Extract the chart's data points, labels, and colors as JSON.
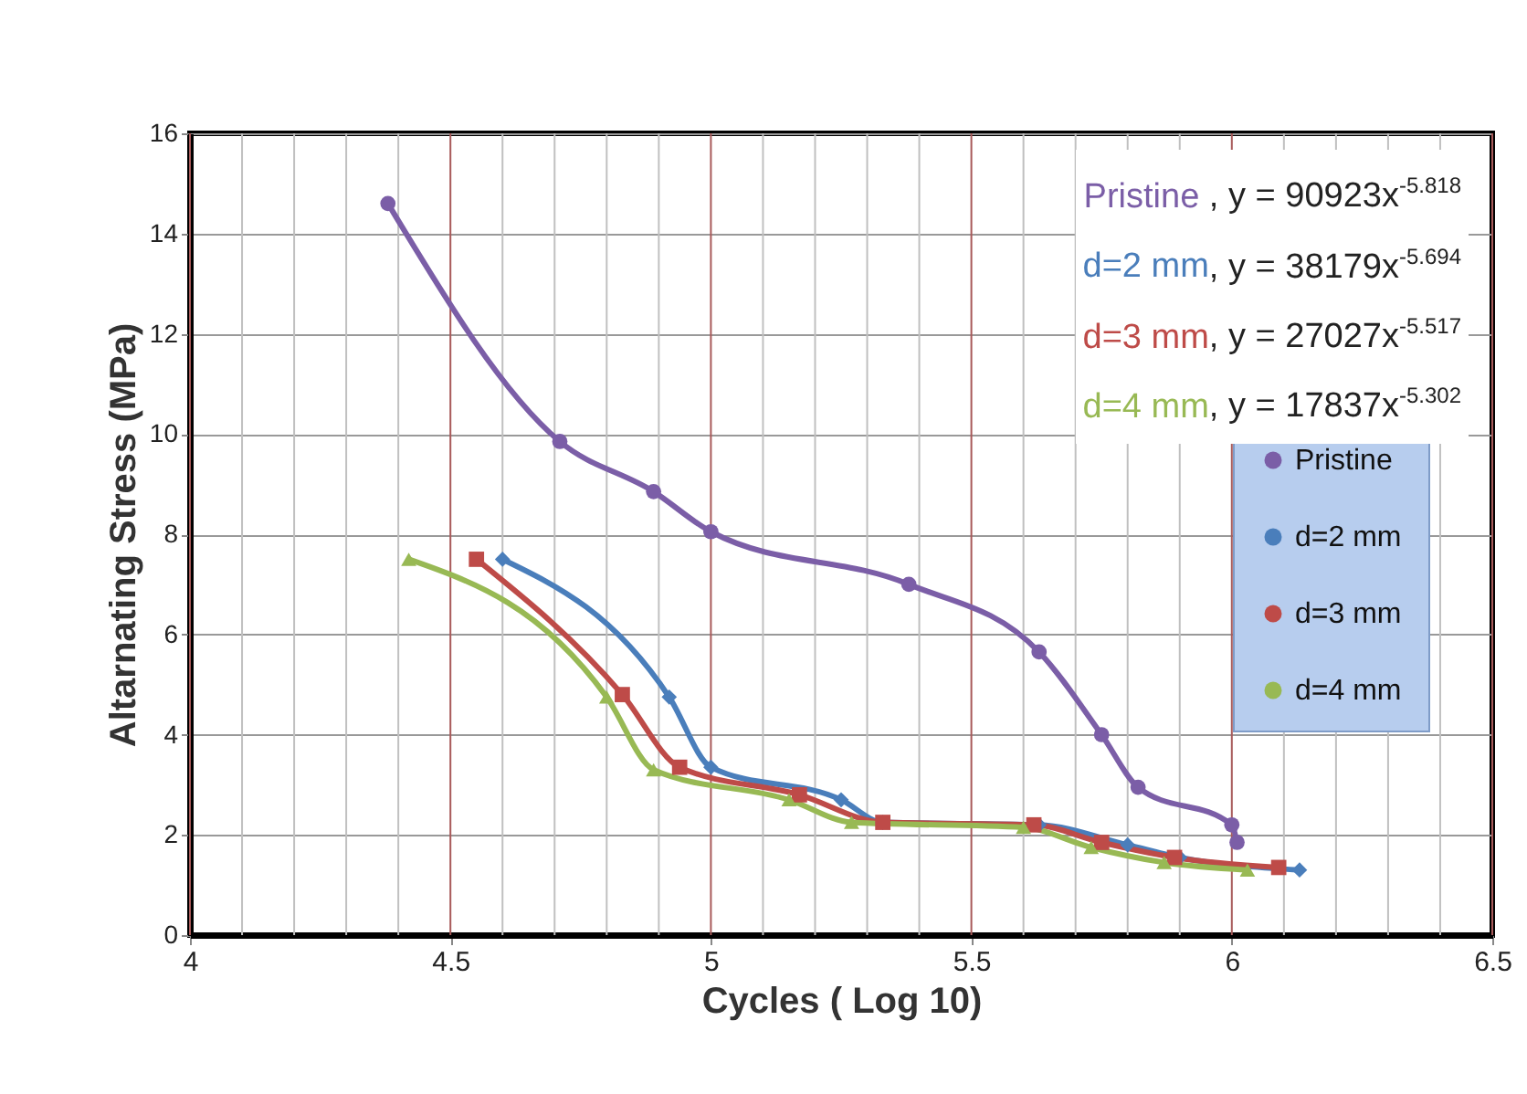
{
  "chart_data": {
    "type": "line",
    "xlabel": "Cycles ( Log 10)",
    "ylabel": "Altarnating Stress (MPa)",
    "xlim": [
      4,
      6.5
    ],
    "xticks": [
      4,
      {
        "value": 4.1,
        "label": null
      },
      {
        "value": 4.2,
        "label": null
      },
      {
        "value": 4.3,
        "label": null
      },
      {
        "value": 4.4,
        "label": null
      },
      4.5,
      {
        "value": 4.6,
        "label": null
      },
      {
        "value": 4.7,
        "label": null
      },
      {
        "value": 4.8,
        "label": null
      },
      {
        "value": 4.9,
        "label": null
      },
      5,
      {
        "value": 5.1,
        "label": null
      },
      {
        "value": 5.2,
        "label": null
      },
      {
        "value": 5.3,
        "label": null
      },
      {
        "value": 5.4,
        "label": null
      },
      5.5,
      {
        "value": 5.6,
        "label": null
      },
      {
        "value": 5.7,
        "label": null
      },
      {
        "value": 5.8,
        "label": null
      },
      {
        "value": 5.9,
        "label": null
      },
      6,
      {
        "value": 6.1,
        "label": null
      },
      {
        "value": 6.2,
        "label": null
      },
      {
        "value": 6.3,
        "label": null
      },
      {
        "value": 6.4,
        "label": null
      },
      6.5
    ],
    "ylim": [
      0,
      16
    ],
    "yticks": [
      0,
      2,
      4,
      6,
      8,
      10,
      12,
      14,
      16
    ],
    "grid": true,
    "legend": "right",
    "annotations": [
      "Pristine ,  y = 90923x$^{-5.818}$",
      "d=2 mm,  y = 38179x$^{-5.694}$",
      "d=3 mm,  y = 27027x$^{-5.517}$",
      "d=4 mm,  y = 17837x$^{-5.302}$"
    ],
    "series": [
      {
        "name": "Pristine",
        "color": "#7b5ea7",
        "marker": "circle",
        "x": [
          4.38,
          4.71,
          4.89,
          5.0,
          5.38,
          5.63,
          5.75,
          5.82,
          6.0,
          6.01
        ],
        "values": [
          14.6,
          9.85,
          8.85,
          8.05,
          7.0,
          5.65,
          4.0,
          2.95,
          2.2,
          1.85
        ]
      },
      {
        "name": "d=2 mm",
        "color": "#4a7ebb",
        "marker": "diamond",
        "x": [
          4.6,
          4.92,
          5.0,
          5.25,
          5.33,
          5.63,
          5.8,
          5.9,
          6.13
        ],
        "values": [
          7.5,
          4.75,
          3.35,
          2.7,
          2.25,
          2.2,
          1.8,
          1.55,
          1.3
        ]
      },
      {
        "name": "d=3 mm",
        "color": "#be4b48",
        "marker": "square",
        "x": [
          4.55,
          4.83,
          4.94,
          5.17,
          5.33,
          5.62,
          5.75,
          5.89,
          6.09
        ],
        "values": [
          7.5,
          4.8,
          3.35,
          2.8,
          2.25,
          2.2,
          1.85,
          1.55,
          1.35
        ]
      },
      {
        "name": "d=4 mm",
        "color": "#98b954",
        "marker": "triangle",
        "x": [
          4.42,
          4.8,
          4.89,
          5.15,
          5.27,
          5.6,
          5.73,
          5.87,
          6.03
        ],
        "values": [
          7.5,
          4.75,
          3.3,
          2.7,
          2.25,
          2.15,
          1.75,
          1.45,
          1.3
        ]
      }
    ]
  }
}
